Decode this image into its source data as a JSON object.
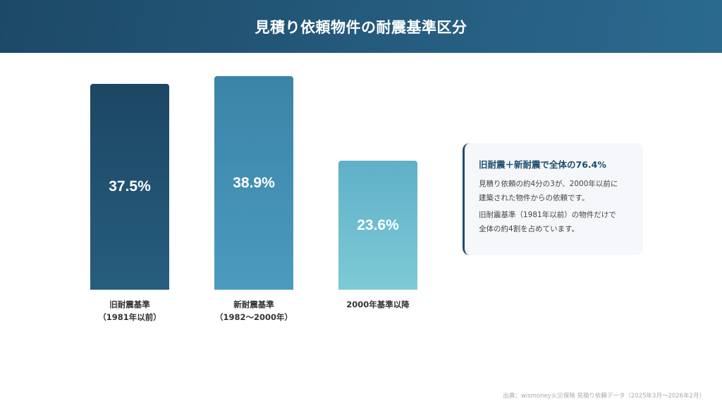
{
  "header": {
    "title": "見積り依頼物件の耐震基準区分"
  },
  "chart_data": {
    "type": "bar",
    "title": "見積り依頼物件の耐震基準区分",
    "categories": [
      "旧耐震基準（1981年以前）",
      "新耐震基準（1982〜2000年）",
      "2000年基準以降"
    ],
    "values": [
      37.5,
      38.9,
      23.6
    ],
    "unit": "%",
    "xlabel": "",
    "ylabel": "",
    "grid": false,
    "colors": [
      "#1c4764",
      "#3b84a8",
      "#5fb0c8"
    ]
  },
  "bars": [
    {
      "value_label": "37.5%",
      "label_line1": "旧耐震基準",
      "label_line2": "（1981年以前）",
      "color": "#1c4764"
    },
    {
      "value_label": "38.9%",
      "label_line1": "新耐震基準",
      "label_line2": "（1982〜2000年）",
      "color": "#3b84a8"
    },
    {
      "value_label": "23.6%",
      "label_line1": "2000年基準以降",
      "label_line2": "",
      "color": "#5fb0c8"
    }
  ],
  "card": {
    "title": "旧耐震＋新耐震で全体の76.4%",
    "paragraph1_line1": "見積り依頼の約4分の3が、2000年以前に",
    "paragraph1_line2": "建築された物件からの依頼です。",
    "paragraph2_line1": "旧耐震基準（1981年以前）の物件だけで",
    "paragraph2_line2": "全体の約4割を占めています。",
    "accent_color": "#1e4d6e"
  },
  "footer": {
    "source": "出典：wismoney火災保険 見積り依頼データ（2025年3月〜2026年2月）"
  }
}
